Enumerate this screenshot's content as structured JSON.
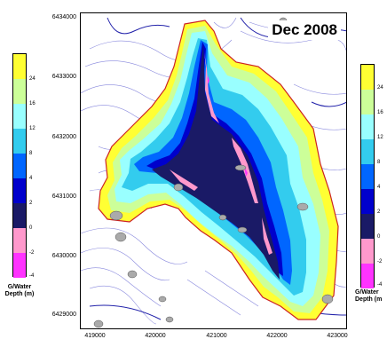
{
  "title": "Dec 2008",
  "y_ticks": [
    "6434000",
    "6433000",
    "6432000",
    "6431000",
    "6430000",
    "6429000"
  ],
  "x_ticks": [
    "419000",
    "420000",
    "421000",
    "422000",
    "423000"
  ],
  "legend": {
    "labels": [
      "24",
      "16",
      "12",
      "8",
      "4",
      "2",
      "0",
      "-2",
      "-4"
    ],
    "caption_line1": "G/Water",
    "caption_line2": "Depth (m)",
    "caption_line2_clipped": "Depth (m",
    "colors": [
      "#ffff33",
      "#ccff99",
      "#99ffff",
      "#33ccee",
      "#0066ff",
      "#0000cc",
      "#1a1a66",
      "#ff99cc",
      "#ff33ff"
    ]
  },
  "colors": {
    "boundary": "#cc2222",
    "contour": "#8888dd",
    "river": "#2222aa",
    "yellow": "#ffff33",
    "light_green": "#ccff99",
    "cyan": "#99ffff",
    "teal": "#33ccee",
    "blue": "#0066ff",
    "dark_blue": "#0000cc",
    "navy": "#1a1a66",
    "pink": "#ff99cc",
    "magenta": "#ff33ff",
    "grey_patch": "#aaaaaa"
  }
}
